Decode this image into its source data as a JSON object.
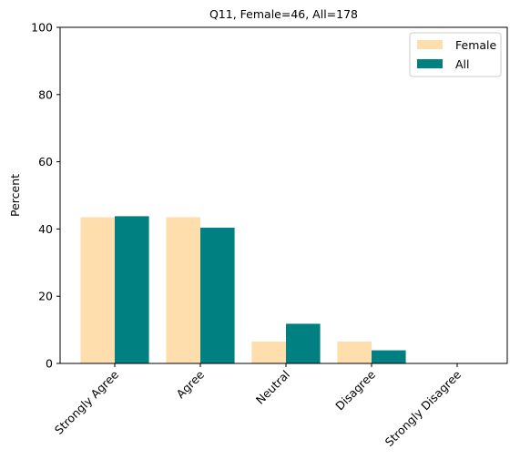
{
  "chart_data": {
    "type": "bar",
    "title": "Q11, Female=46, All=178",
    "ylabel": "Percent",
    "xlabel": "",
    "categories": [
      "Strongly Agree",
      "Agree",
      "Neutral",
      "Disagree",
      "Strongly Disagree"
    ],
    "series": [
      {
        "name": "Female",
        "color": "#FFDEAD",
        "values": [
          43.5,
          43.5,
          6.5,
          6.5,
          0
        ]
      },
      {
        "name": "All",
        "color": "#008080",
        "values": [
          43.8,
          40.4,
          11.8,
          3.9,
          0
        ]
      }
    ],
    "ylim": [
      0,
      100
    ],
    "yticks": [
      0,
      20,
      40,
      60,
      80,
      100
    ],
    "grid": false,
    "legend": "top-right"
  }
}
